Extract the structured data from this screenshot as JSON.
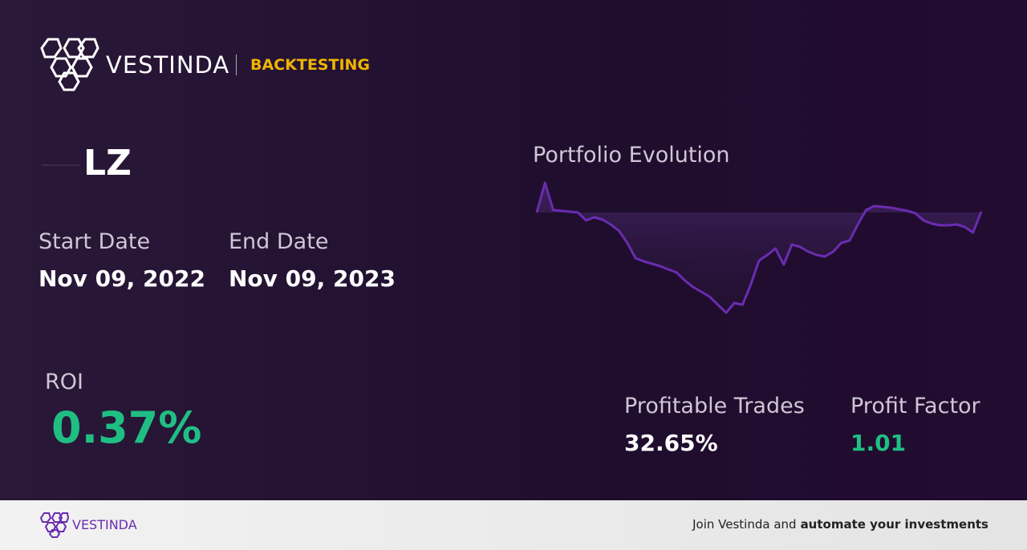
{
  "header": {
    "brand": "VESTINDA",
    "section": "BACKTESTING"
  },
  "ticker": "LZ",
  "start_date": {
    "label": "Start Date",
    "value": "Nov 09, 2022"
  },
  "end_date": {
    "label": "End Date",
    "value": "Nov 09, 2023"
  },
  "roi": {
    "label": "ROI",
    "value": "0.37%"
  },
  "profitable_trades": {
    "label": "Profitable Trades",
    "value": "32.65%"
  },
  "profit_factor": {
    "label": "Profit Factor",
    "value": "1.01"
  },
  "chart_data": {
    "type": "line",
    "title": "Portfolio Evolution",
    "color": "#6a2cb0",
    "values": [
      100.2,
      103.9,
      100.5,
      100.4,
      100.3,
      100.2,
      99.2,
      99.6,
      99.3,
      98.7,
      97.9,
      96.4,
      94.5,
      94.1,
      93.8,
      93.5,
      93.1,
      92.7,
      91.7,
      90.9,
      90.3,
      89.7,
      88.7,
      87.7,
      88.9,
      88.7,
      91.2,
      94.2,
      94.9,
      95.7,
      93.7,
      96.2,
      95.9,
      95.3,
      94.9,
      94.7,
      95.3,
      96.4,
      96.7,
      98.7,
      100.5,
      101.0,
      100.9,
      100.8,
      100.6,
      100.4,
      100.1,
      99.2,
      98.8,
      98.6,
      98.6,
      98.7,
      98.4,
      97.7,
      100.3
    ]
  },
  "footer": {
    "brand": "VESTINDA",
    "cta_prefix": "Join Vestinda and",
    "cta_bold": "automate your investments"
  }
}
